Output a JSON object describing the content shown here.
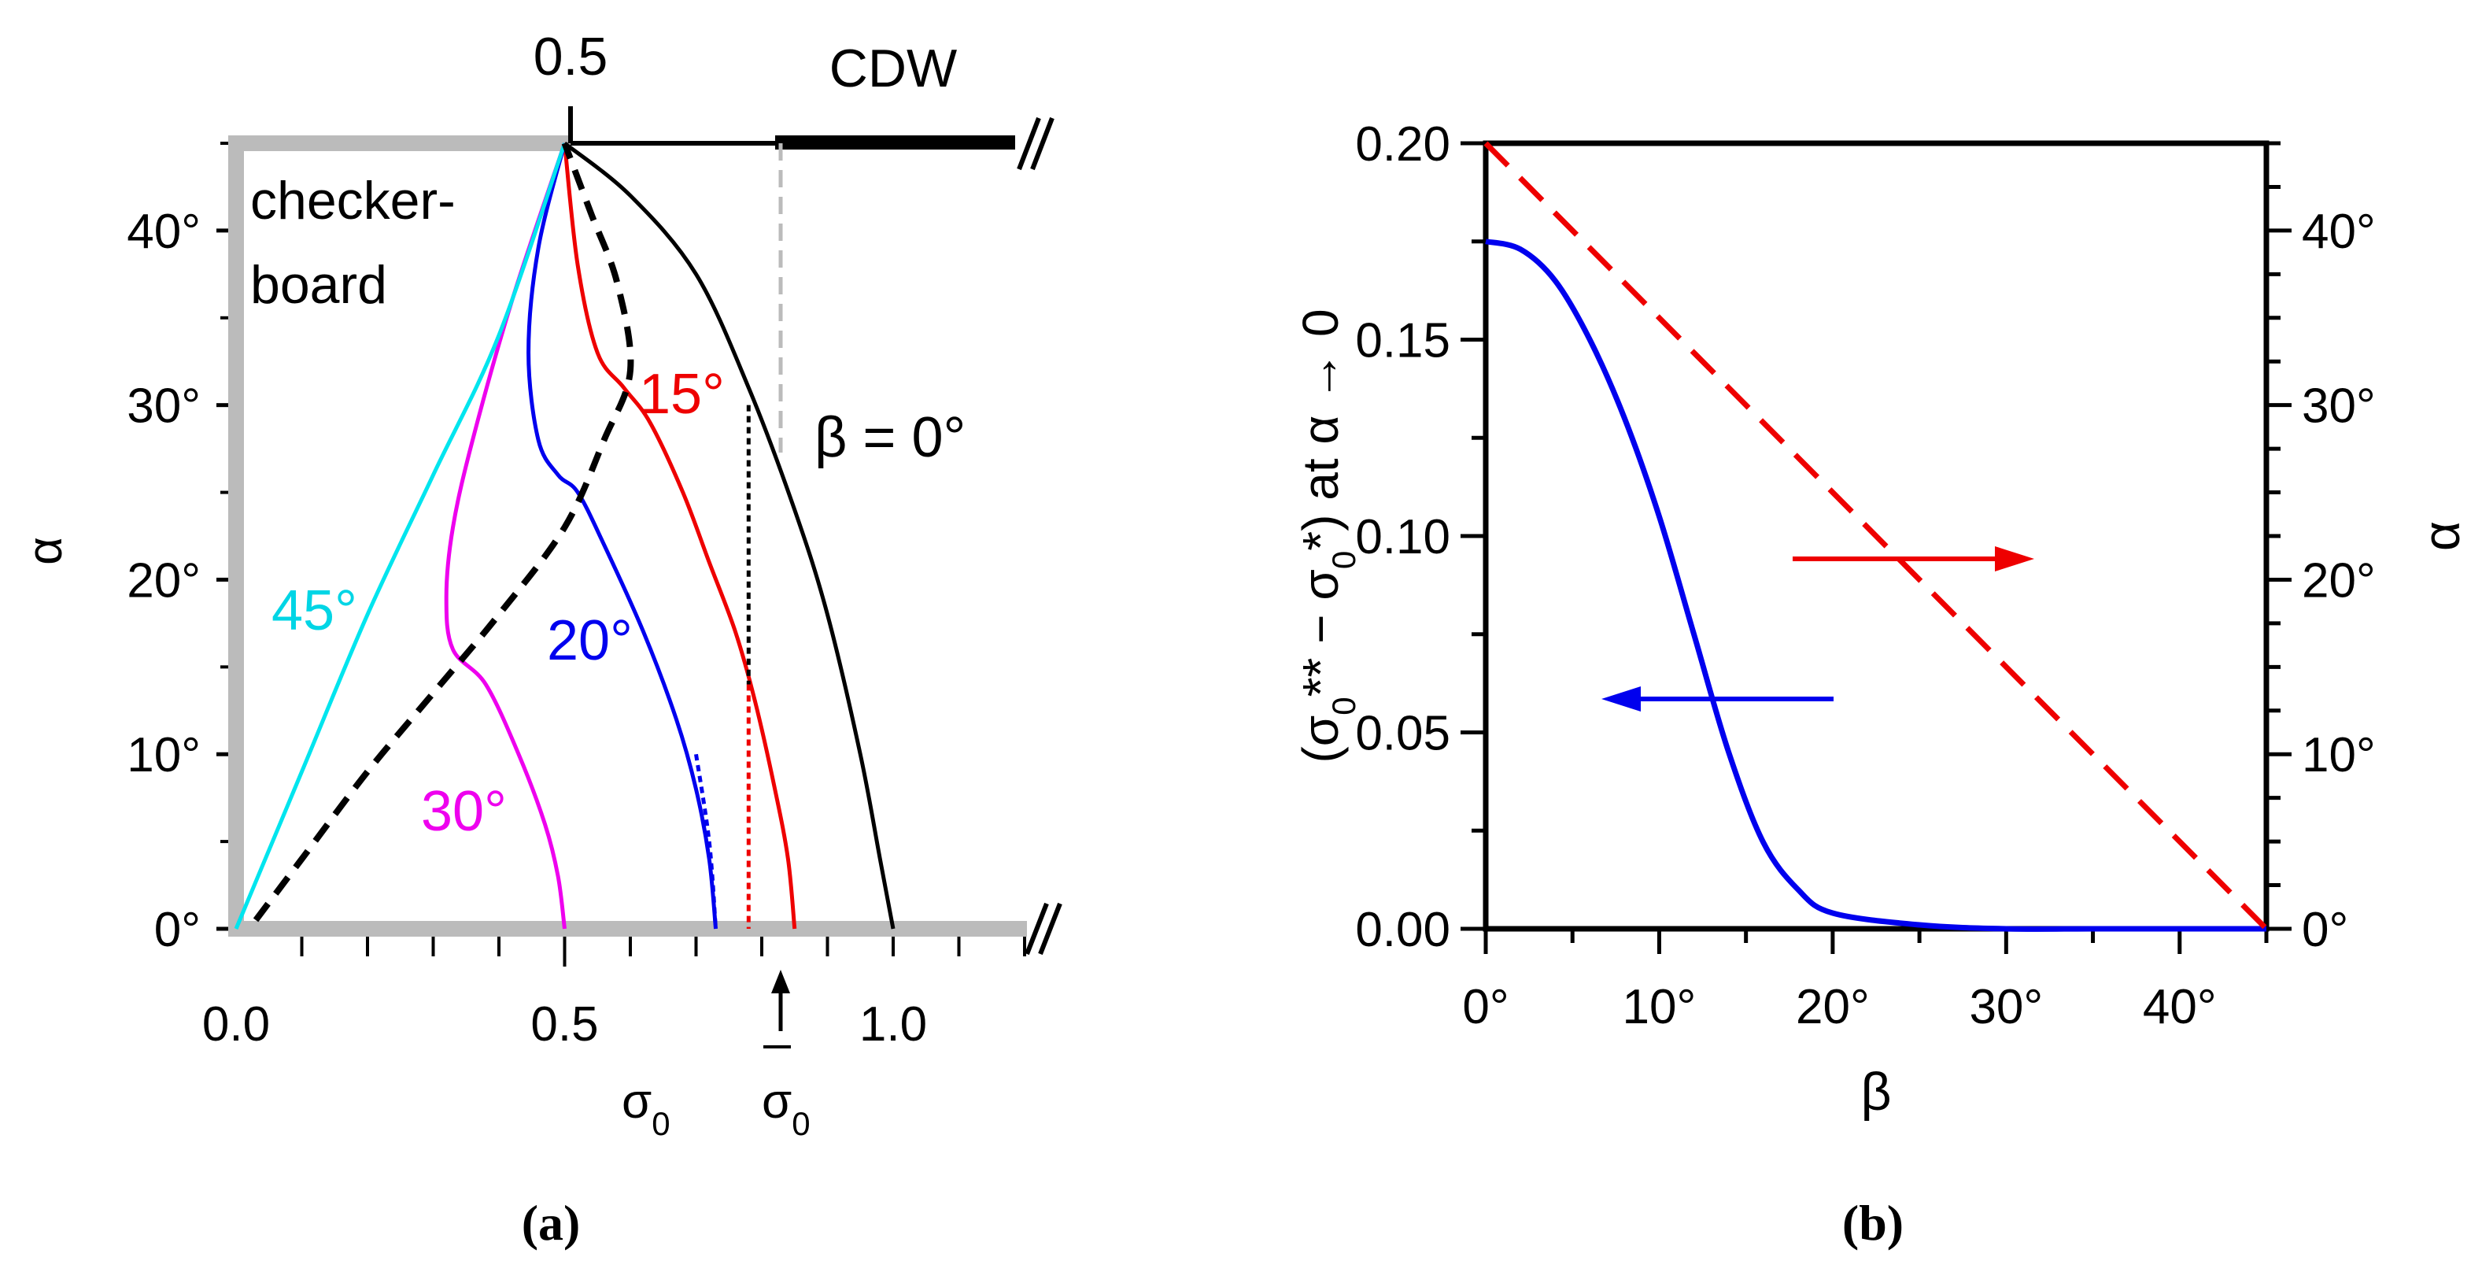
{
  "chart_data": [
    {
      "panel_label": "(a)",
      "type": "line",
      "xlabel": "σ",
      "xlabel_sub": "0",
      "ylabel": "α",
      "xlim": [
        0,
        1.25
      ],
      "ylim": [
        0,
        45
      ],
      "x_ticks": [
        "0.0",
        "0.5",
        "1.0"
      ],
      "x_tick_values": [
        0,
        0.5,
        1.0
      ],
      "y_ticks": [
        "0°",
        "10°",
        "20°",
        "30°",
        "40°"
      ],
      "y_tick_values": [
        0,
        10,
        20,
        30,
        40
      ],
      "region_label_line1": "checker-",
      "region_label_line2": "board",
      "top_label": "0.5",
      "cdw_label": "CDW",
      "break_mark": "//",
      "sigma_bar_label": "σ",
      "sigma_bar_sub": "0",
      "sigma_bar_value": 0.78,
      "series": [
        {
          "name": "β = 0°",
          "label": "β = 0°",
          "color": "#000000",
          "style": "solid",
          "points": [
            [
              0.5,
              45
            ],
            [
              0.6,
              42
            ],
            [
              0.7,
              37.5
            ],
            [
              0.78,
              31
            ],
            [
              0.85,
              24
            ],
            [
              0.9,
              18
            ],
            [
              0.95,
              10
            ],
            [
              0.98,
              4
            ],
            [
              1.0,
              0
            ]
          ]
        },
        {
          "name": "15°",
          "label": "15°",
          "color": "#ee0000",
          "style": "solid",
          "points": [
            [
              0.5,
              45
            ],
            [
              0.52,
              38
            ],
            [
              0.55,
              33
            ],
            [
              0.59,
              31
            ],
            [
              0.63,
              29
            ],
            [
              0.68,
              25
            ],
            [
              0.72,
              21
            ],
            [
              0.76,
              17
            ],
            [
              0.79,
              13
            ],
            [
              0.82,
              8
            ],
            [
              0.84,
              4
            ],
            [
              0.85,
              0
            ]
          ]
        },
        {
          "name": "20°",
          "label": "20°",
          "color": "#0000ee",
          "style": "solid",
          "points": [
            [
              0.5,
              45
            ],
            [
              0.46,
              39
            ],
            [
              0.445,
              33
            ],
            [
              0.46,
              28
            ],
            [
              0.49,
              26
            ],
            [
              0.52,
              25
            ],
            [
              0.56,
              22
            ],
            [
              0.62,
              17
            ],
            [
              0.67,
              12
            ],
            [
              0.7,
              8
            ],
            [
              0.72,
              4
            ],
            [
              0.73,
              0
            ]
          ]
        },
        {
          "name": "30°",
          "label": "30°",
          "color": "#ee00ee",
          "style": "solid",
          "points": [
            [
              0.5,
              45
            ],
            [
              0.42,
              36
            ],
            [
              0.36,
              28
            ],
            [
              0.33,
              23
            ],
            [
              0.32,
              19
            ],
            [
              0.33,
              16
            ],
            [
              0.38,
              14
            ],
            [
              0.43,
              10
            ],
            [
              0.47,
              6
            ],
            [
              0.49,
              3
            ],
            [
              0.5,
              0
            ]
          ]
        },
        {
          "name": "45°",
          "label": "45°",
          "color": "#00e5ee",
          "style": "solid",
          "points": [
            [
              0.0,
              0
            ],
            [
              0.1,
              9
            ],
            [
              0.2,
              18
            ],
            [
              0.3,
              26
            ],
            [
              0.4,
              34
            ],
            [
              0.5,
              45
            ]
          ]
        },
        {
          "name": "boundary",
          "label": "",
          "color": "#000000",
          "style": "dashed",
          "points": [
            [
              0.03,
              0.5
            ],
            [
              0.1,
              4
            ],
            [
              0.2,
              9
            ],
            [
              0.3,
              13.5
            ],
            [
              0.4,
              18
            ],
            [
              0.5,
              23
            ],
            [
              0.56,
              28
            ],
            [
              0.6,
              32
            ],
            [
              0.58,
              37
            ],
            [
              0.54,
              41
            ],
            [
              0.5,
              45
            ]
          ]
        },
        {
          "name": "20° dotted",
          "label": "",
          "color": "#0000ee",
          "style": "dotted",
          "points": [
            [
              0.7,
              10
            ],
            [
              0.72,
              5
            ],
            [
              0.73,
              0
            ]
          ]
        },
        {
          "name": "15° dotted",
          "label": "",
          "color": "#ee0000",
          "style": "dotted",
          "points": [
            [
              0.78,
              14
            ],
            [
              0.78,
              7
            ],
            [
              0.78,
              0
            ]
          ]
        },
        {
          "name": "β=0 dotted",
          "label": "",
          "color": "#000000",
          "style": "dotted",
          "points": [
            [
              0.78,
              30
            ],
            [
              0.78,
              14
            ]
          ]
        }
      ]
    },
    {
      "panel_label": "(b)",
      "type": "line",
      "xlabel": "β",
      "ylabel": "(σ₀** − σ₀*) at α → 0",
      "ylabel_parts": [
        "(σ",
        "0",
        "** − σ",
        "0",
        "*) at α → 0"
      ],
      "y2label": "α",
      "xlim": [
        0,
        45
      ],
      "ylim": [
        0,
        0.2
      ],
      "y2lim": [
        0,
        45
      ],
      "x_ticks": [
        "0°",
        "10°",
        "20°",
        "30°",
        "40°"
      ],
      "x_tick_values": [
        0,
        10,
        20,
        30,
        40
      ],
      "y_ticks": [
        "0.00",
        "0.05",
        "0.10",
        "0.15",
        "0.20"
      ],
      "y_tick_values": [
        0,
        0.05,
        0.1,
        0.15,
        0.2
      ],
      "y2_ticks": [
        "0°",
        "10°",
        "20°",
        "30°",
        "40°"
      ],
      "y2_tick_values": [
        0,
        10,
        20,
        30,
        40
      ],
      "series": [
        {
          "name": "σ0** − σ0*",
          "axis": "left",
          "color": "#0000ee",
          "style": "solid",
          "x": [
            0,
            2,
            4,
            6,
            8,
            10,
            12,
            14,
            16,
            18,
            20,
            25,
            30,
            35,
            40,
            45
          ],
          "y": [
            0.175,
            0.173,
            0.165,
            0.15,
            0.13,
            0.105,
            0.075,
            0.045,
            0.022,
            0.01,
            0.004,
            0.001,
            0.0,
            0.0,
            0.0,
            0.0
          ]
        },
        {
          "name": "α",
          "axis": "right",
          "color": "#ee0000",
          "style": "dashed",
          "x": [
            0,
            45
          ],
          "y": [
            45,
            0
          ]
        }
      ]
    }
  ]
}
